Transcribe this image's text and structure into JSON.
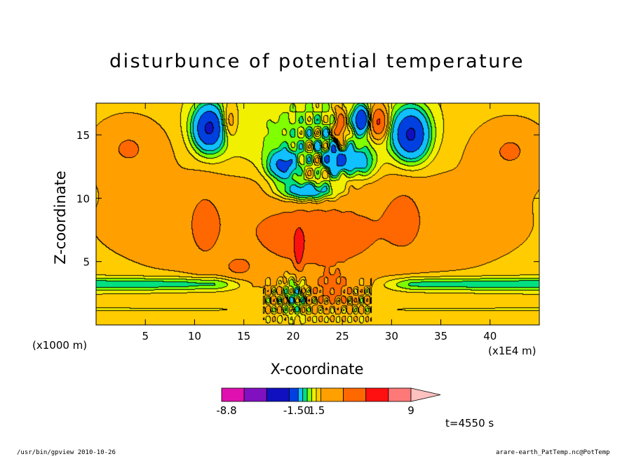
{
  "chart_data": {
    "type": "heatmap",
    "title": "disturbunce of potential temperature",
    "xlabel": "X-coordinate",
    "ylabel": "Z-coordinate",
    "x_unit_label": "(x1000 m)",
    "x_scale_label": "(x1E4 m)",
    "time_label": "t=4550 s",
    "xlim": [
      0,
      45
    ],
    "ylim": [
      0,
      17.5
    ],
    "x_ticks": [
      "5",
      "10",
      "15",
      "20",
      "25",
      "30",
      "35",
      "40"
    ],
    "x_tick_values": [
      5,
      10,
      15,
      20,
      25,
      30,
      35,
      40
    ],
    "y_ticks": [
      "5",
      "10",
      "15"
    ],
    "y_tick_values": [
      5,
      10,
      15
    ],
    "colorbar": {
      "colors": [
        "#e010b0",
        "#8010c0",
        "#1010c0",
        "#0040e0",
        "#10c0ff",
        "#00e080",
        "#80ff00",
        "#f0f000",
        "#ffcc00",
        "#ffa000",
        "#ff6800",
        "#ff1010",
        "#ff7878",
        "#ffc0c0"
      ],
      "tick_labels": [
        "-8.8",
        "-1.50",
        "1.5",
        "9"
      ],
      "tick_values": [
        -8.8,
        -1.5,
        1.5,
        9
      ],
      "extend": "max"
    },
    "features": [
      {
        "x": 22.0,
        "z": 8.0,
        "sx": 20,
        "sz": 4.6,
        "value": 1.4
      },
      {
        "x": 22.5,
        "z": 6.6,
        "sx": 4.3,
        "sz": 1.8,
        "value": 1.4
      },
      {
        "x": 3.3,
        "z": 14.0,
        "sx": 3.6,
        "sz": 2.4,
        "value": 1.4
      },
      {
        "x": 42.1,
        "z": 13.8,
        "sx": 3.6,
        "sz": 2.4,
        "value": 1.4
      },
      {
        "x": 11.0,
        "z": 7.8,
        "sx": 1.6,
        "sz": 3.4,
        "value": 0.8
      },
      {
        "x": 31.3,
        "z": 8.5,
        "sx": 1.8,
        "sz": 2.8,
        "value": 0.8
      },
      {
        "x": 21.5,
        "z": 14.5,
        "sx": 8,
        "sz": 3.5,
        "value": -1.0
      },
      {
        "x": 11.5,
        "z": 15.5,
        "sx": 1.6,
        "sz": 1.8,
        "value": -4.5
      },
      {
        "x": 32.0,
        "z": 15.0,
        "sx": 1.8,
        "sz": 2.0,
        "value": -4.5
      },
      {
        "x": 19.0,
        "z": 12.5,
        "sx": 1.6,
        "sz": 1.2,
        "value": -3.0
      },
      {
        "x": 24.5,
        "z": 13.0,
        "sx": 1.3,
        "sz": 1.3,
        "value": -3.0
      },
      {
        "x": 21.5,
        "z": 10.5,
        "sx": 3.0,
        "sz": 0.8,
        "value": -3.0
      },
      {
        "x": 27.0,
        "z": 12.8,
        "sx": 1.4,
        "sz": 1.2,
        "value": -2.0
      },
      {
        "x": 20.2,
        "z": 2.5,
        "sx": 1.1,
        "sz": 1.6,
        "value": -1.5
      },
      {
        "x": 27.0,
        "z": 16.2,
        "sx": 0.8,
        "sz": 1.0,
        "value": -4.0
      },
      {
        "x": 28.7,
        "z": 16.0,
        "sx": 0.9,
        "sz": 1.2,
        "value": 3.5
      },
      {
        "x": 24.8,
        "z": 15.5,
        "sx": 0.6,
        "sz": 1.6,
        "value": 3.0
      },
      {
        "x": 13.5,
        "z": 16.0,
        "sx": 0.8,
        "sz": 1.3,
        "value": 1.5
      },
      {
        "x": 20.6,
        "z": 5.8,
        "sx": 0.45,
        "sz": 1.7,
        "value": 2.4
      },
      {
        "x": 24.0,
        "z": 2.8,
        "sx": 1.8,
        "sz": 1.3,
        "value": 1.6
      },
      {
        "x": 14.5,
        "z": 4.5,
        "sx": 1.5,
        "sz": 0.8,
        "value": 1.1
      }
    ],
    "background_bands": [
      {
        "z": 3.2,
        "sz": 0.55,
        "value": -1.6
      },
      {
        "z": 1.2,
        "sz": 0.12,
        "value": -0.35
      }
    ]
  },
  "footer": {
    "left": "/usr/bin/gpview   2010-10-26",
    "right": "arare-earth_PatTemp.nc@PotTemp"
  }
}
